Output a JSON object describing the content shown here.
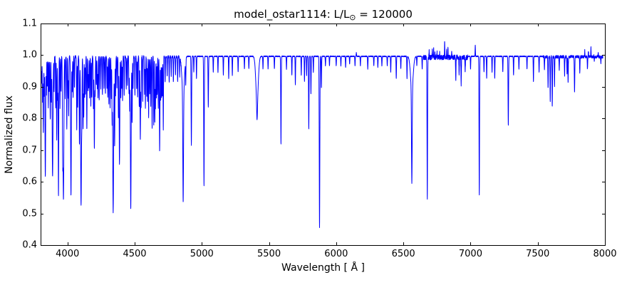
{
  "figure": {
    "title_prefix": "model_ostar1114: L/L",
    "title_sub": "⊙",
    "title_suffix": " = 120000",
    "xlabel": "Wavelength [ Å ]",
    "ylabel": "Normalized flux"
  },
  "chart_data": {
    "type": "line",
    "title": "model_ostar1114: L/L⊙ = 120000",
    "xlabel": "Wavelength [ Å ]",
    "ylabel": "Normalized flux",
    "xlim": [
      3800,
      8000
    ],
    "ylim": [
      0.4,
      1.1
    ],
    "x_ticks": [
      4000,
      4500,
      5000,
      5500,
      6000,
      6500,
      7000,
      7500,
      8000
    ],
    "x_tick_labels": [
      "4000",
      "4500",
      "5000",
      "5500",
      "6000",
      "6500",
      "7000",
      "7500",
      "8000"
    ],
    "y_ticks": [
      0.4,
      0.5,
      0.6,
      0.7,
      0.8,
      0.9,
      1.0,
      1.1
    ],
    "y_tick_labels": [
      "0.4",
      "0.5",
      "0.6",
      "0.7",
      "0.8",
      "0.9",
      "1.0",
      "1.1"
    ],
    "grid": false,
    "legend": null,
    "line_color": "#0000ff",
    "frame_color": "#000000",
    "continuum_flux": 1.0,
    "data_end_wavelength": 7985,
    "base_noise": 0.0015,
    "noise_regions": [
      [
        3800,
        4850,
        0.004
      ],
      [
        6650,
        6980,
        0.008
      ],
      [
        7540,
        8000,
        0.0045
      ]
    ],
    "absorption_lines": [
      [
        3803,
        0.1,
        1.5
      ],
      [
        3808,
        0.08,
        1.5
      ],
      [
        3814,
        0.14,
        1.5
      ],
      [
        3820,
        0.24,
        2.0
      ],
      [
        3827,
        0.12,
        1.5
      ],
      [
        3835,
        0.38,
        2.5
      ],
      [
        3843,
        0.12,
        1.5
      ],
      [
        3850,
        0.09,
        1.5
      ],
      [
        3857,
        0.16,
        1.5
      ],
      [
        3864,
        0.11,
        1.5
      ],
      [
        3872,
        0.2,
        1.8
      ],
      [
        3880,
        0.14,
        1.5
      ],
      [
        3889,
        0.38,
        3.0
      ],
      [
        3900,
        0.11,
        1.5
      ],
      [
        3912,
        0.16,
        1.5
      ],
      [
        3920,
        0.26,
        1.8
      ],
      [
        3927,
        0.13,
        1.5
      ],
      [
        3933,
        0.44,
        2.0
      ],
      [
        3944,
        0.16,
        1.5
      ],
      [
        3952,
        0.11,
        1.5
      ],
      [
        3964,
        0.28,
        2.0
      ],
      [
        3970,
        0.45,
        3.0
      ],
      [
        3983,
        0.13,
        1.5
      ],
      [
        3995,
        0.23,
        1.6
      ],
      [
        4004,
        0.13,
        1.5
      ],
      [
        4009,
        0.19,
        1.5
      ],
      [
        4026,
        0.44,
        2.6
      ],
      [
        4035,
        0.11,
        1.5
      ],
      [
        4042,
        0.13,
        1.5
      ],
      [
        4052,
        0.1,
        1.5
      ],
      [
        4069,
        0.23,
        1.6
      ],
      [
        4076,
        0.16,
        1.5
      ],
      [
        4089,
        0.28,
        1.8
      ],
      [
        4101,
        0.47,
        3.2
      ],
      [
        4107,
        0.14,
        1.5
      ],
      [
        4116,
        0.23,
        1.6
      ],
      [
        4121,
        0.19,
        1.5
      ],
      [
        4128,
        0.13,
        1.5
      ],
      [
        4134,
        0.12,
        1.5
      ],
      [
        4144,
        0.23,
        1.6
      ],
      [
        4153,
        0.11,
        1.5
      ],
      [
        4158,
        0.1,
        1.5
      ],
      [
        4165,
        0.13,
        1.5
      ],
      [
        4174,
        0.16,
        1.5
      ],
      [
        4181,
        0.13,
        1.5
      ],
      [
        4193,
        0.16,
        1.5
      ],
      [
        4200,
        0.29,
        2.2
      ],
      [
        4206,
        0.12,
        1.5
      ],
      [
        4215,
        0.09,
        1.5
      ],
      [
        4222,
        0.1,
        1.5
      ],
      [
        4227,
        0.13,
        1.5
      ],
      [
        4236,
        0.14,
        1.5
      ],
      [
        4248,
        0.1,
        1.5
      ],
      [
        4260,
        0.12,
        1.5
      ],
      [
        4272,
        0.1,
        1.5
      ],
      [
        4282,
        0.12,
        1.5
      ],
      [
        4294,
        0.1,
        1.5
      ],
      [
        4300,
        0.13,
        1.5
      ],
      [
        4308,
        0.15,
        1.5
      ],
      [
        4317,
        0.16,
        1.5
      ],
      [
        4326,
        0.13,
        1.5
      ],
      [
        4332,
        0.18,
        1.5
      ],
      [
        4340,
        0.49,
        3.4
      ],
      [
        4351,
        0.28,
        1.8
      ],
      [
        4358,
        0.12,
        1.5
      ],
      [
        4368,
        0.1,
        1.5
      ],
      [
        4379,
        0.19,
        1.5
      ],
      [
        4387,
        0.34,
        2.4
      ],
      [
        4397,
        0.13,
        1.5
      ],
      [
        4404,
        0.1,
        1.5
      ],
      [
        4410,
        0.14,
        1.5
      ],
      [
        4422,
        0.12,
        1.5
      ],
      [
        4437,
        0.1,
        1.5
      ],
      [
        4446,
        0.09,
        1.5
      ],
      [
        4458,
        0.12,
        1.5
      ],
      [
        4463,
        0.16,
        1.5
      ],
      [
        4471,
        0.48,
        2.8
      ],
      [
        4481,
        0.21,
        1.6
      ],
      [
        4488,
        0.1,
        1.5
      ],
      [
        4502,
        0.12,
        1.5
      ],
      [
        4515,
        0.1,
        1.5
      ],
      [
        4522,
        0.13,
        1.5
      ],
      [
        4534,
        0.16,
        1.5
      ],
      [
        4542,
        0.26,
        2.2
      ],
      [
        4548,
        0.16,
        1.5
      ],
      [
        4560,
        0.14,
        1.5
      ],
      [
        4574,
        0.12,
        1.5
      ],
      [
        4580,
        0.16,
        1.5
      ],
      [
        4590,
        0.13,
        1.5
      ],
      [
        4596,
        0.14,
        1.5
      ],
      [
        4604,
        0.19,
        1.5
      ],
      [
        4612,
        0.12,
        1.5
      ],
      [
        4620,
        0.16,
        1.5
      ],
      [
        4630,
        0.23,
        1.6
      ],
      [
        4642,
        0.22,
        1.5
      ],
      [
        4650,
        0.21,
        1.6
      ],
      [
        4655,
        0.16,
        1.5
      ],
      [
        4662,
        0.13,
        1.5
      ],
      [
        4668,
        0.12,
        1.5
      ],
      [
        4676,
        0.16,
        1.5
      ],
      [
        4686,
        0.3,
        2.2
      ],
      [
        4694,
        0.14,
        1.5
      ],
      [
        4700,
        0.13,
        1.5
      ],
      [
        4706,
        0.12,
        1.5
      ],
      [
        4713,
        0.23,
        1.6
      ],
      [
        4727,
        0.08,
        1.5
      ],
      [
        4742,
        0.06,
        1.5
      ],
      [
        4757,
        0.08,
        1.5
      ],
      [
        4772,
        0.06,
        1.5
      ],
      [
        4788,
        0.08,
        1.5
      ],
      [
        4804,
        0.06,
        1.5
      ],
      [
        4820,
        0.08,
        1.5
      ],
      [
        4835,
        0.06,
        1.5
      ],
      [
        4861,
        0.34,
        2.6
      ],
      [
        4861,
        0.12,
        9.0
      ],
      [
        4880,
        0.08,
        1.5
      ],
      [
        4922,
        0.28,
        2.0
      ],
      [
        4940,
        0.05,
        1.5
      ],
      [
        4960,
        0.07,
        1.5
      ],
      [
        5016,
        0.41,
        2.0
      ],
      [
        5048,
        0.16,
        1.8
      ],
      [
        5085,
        0.05,
        1.5
      ],
      [
        5120,
        0.05,
        1.5
      ],
      [
        5160,
        0.06,
        1.5
      ],
      [
        5200,
        0.07,
        1.5
      ],
      [
        5227,
        0.06,
        1.5
      ],
      [
        5270,
        0.05,
        1.5
      ],
      [
        5317,
        0.04,
        1.5
      ],
      [
        5350,
        0.04,
        1.5
      ],
      [
        5411,
        0.14,
        9.0
      ],
      [
        5411,
        0.06,
        3.0
      ],
      [
        5455,
        0.04,
        1.5
      ],
      [
        5493,
        0.04,
        1.5
      ],
      [
        5540,
        0.04,
        1.5
      ],
      [
        5589,
        0.28,
        1.8
      ],
      [
        5630,
        0.04,
        1.5
      ],
      [
        5670,
        0.06,
        1.5
      ],
      [
        5696,
        0.09,
        1.5
      ],
      [
        5740,
        0.06,
        1.5
      ],
      [
        5764,
        0.08,
        1.5
      ],
      [
        5780,
        0.06,
        1.5
      ],
      [
        5796,
        0.23,
        1.8
      ],
      [
        5812,
        0.12,
        1.6
      ],
      [
        5830,
        0.05,
        1.5
      ],
      [
        5876,
        0.54,
        2.2
      ],
      [
        5890,
        0.1,
        1.5
      ],
      [
        5920,
        0.03,
        1.5
      ],
      [
        5950,
        0.03,
        1.5
      ],
      [
        6000,
        0.03,
        1.5
      ],
      [
        6035,
        0.03,
        1.5
      ],
      [
        6070,
        0.035,
        1.5
      ],
      [
        6100,
        0.025,
        1.5
      ],
      [
        6140,
        0.03,
        1.5
      ],
      [
        6180,
        0.03,
        1.5
      ],
      [
        6235,
        0.04,
        1.5
      ],
      [
        6280,
        0.03,
        1.5
      ],
      [
        6310,
        0.035,
        1.5
      ],
      [
        6340,
        0.03,
        1.5
      ],
      [
        6380,
        0.03,
        1.5
      ],
      [
        6406,
        0.05,
        1.5
      ],
      [
        6447,
        0.07,
        1.6
      ],
      [
        6481,
        0.04,
        1.5
      ],
      [
        6527,
        0.07,
        1.5
      ],
      [
        6563,
        0.3,
        2.6
      ],
      [
        6563,
        0.1,
        10.0
      ],
      [
        6600,
        0.03,
        1.5
      ],
      [
        6640,
        0.04,
        1.5
      ],
      [
        6678,
        0.45,
        1.9
      ],
      [
        6890,
        0.07,
        1.6
      ],
      [
        6915,
        0.05,
        1.5
      ],
      [
        6930,
        0.09,
        1.6
      ],
      [
        6960,
        0.04,
        1.5
      ],
      [
        7000,
        0.04,
        1.5
      ],
      [
        7065,
        0.44,
        1.9
      ],
      [
        7100,
        0.05,
        1.5
      ],
      [
        7120,
        0.07,
        1.5
      ],
      [
        7160,
        0.05,
        1.5
      ],
      [
        7180,
        0.07,
        1.5
      ],
      [
        7240,
        0.05,
        1.5
      ],
      [
        7281,
        0.22,
        1.9
      ],
      [
        7320,
        0.06,
        1.5
      ],
      [
        7360,
        0.04,
        1.5
      ],
      [
        7420,
        0.04,
        1.5
      ],
      [
        7468,
        0.08,
        1.5
      ],
      [
        7510,
        0.05,
        1.5
      ],
      [
        7550,
        0.04,
        1.5
      ],
      [
        7577,
        0.1,
        1.6
      ],
      [
        7593,
        0.14,
        1.6
      ],
      [
        7608,
        0.16,
        1.6
      ],
      [
        7625,
        0.09,
        1.5
      ],
      [
        7660,
        0.04,
        1.5
      ],
      [
        7700,
        0.06,
        1.5
      ],
      [
        7718,
        0.05,
        1.5
      ],
      [
        7726,
        0.08,
        1.5
      ],
      [
        7774,
        0.11,
        1.8
      ],
      [
        7813,
        0.05,
        1.5
      ],
      [
        7870,
        0.04,
        1.5
      ],
      [
        7920,
        0.03,
        1.5
      ],
      [
        7970,
        0.02,
        1.5
      ]
    ],
    "emission_lines": [
      [
        6150,
        0.012,
        1.5
      ],
      [
        6692,
        0.02,
        1.2
      ],
      [
        6715,
        0.02,
        1.2
      ],
      [
        6725,
        0.026,
        1.2
      ],
      [
        6735,
        0.02,
        1.2
      ],
      [
        6750,
        0.016,
        1.2
      ],
      [
        6770,
        0.012,
        1.2
      ],
      [
        6807,
        0.046,
        1.3
      ],
      [
        6822,
        0.02,
        1.2
      ],
      [
        6832,
        0.03,
        1.2
      ],
      [
        6860,
        0.016,
        1.2
      ],
      [
        7035,
        0.036,
        1.3
      ],
      [
        7850,
        0.02,
        1.2
      ],
      [
        7877,
        0.02,
        1.2
      ],
      [
        7896,
        0.028,
        1.2
      ],
      [
        7919,
        0.025,
        1.2
      ],
      [
        7950,
        0.012,
        1.2
      ]
    ]
  }
}
